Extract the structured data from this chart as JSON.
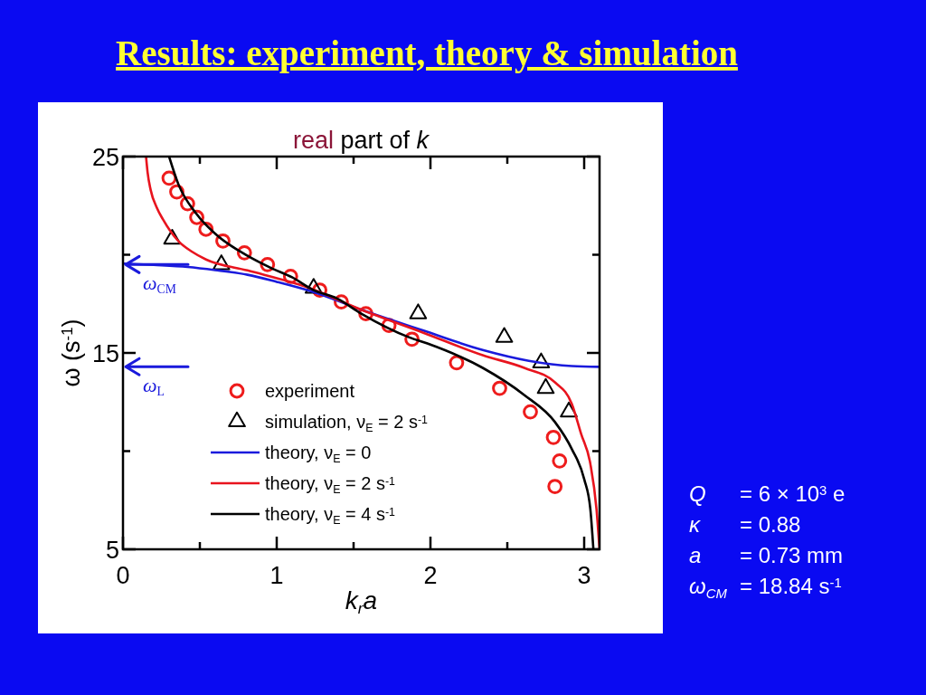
{
  "chart_data": {
    "type": "line",
    "title": "Results: experiment, theory & simulation",
    "subtitle": "real part of k",
    "xlabel": "k$_{r}$a",
    "ylabel": "ω (s$^{-1}$)",
    "xlim": [
      0,
      3.1
    ],
    "ylim": [
      5,
      25
    ],
    "xticks": [
      0,
      {
        "value": 0.5,
        "label": null
      },
      1,
      {
        "value": 1.5,
        "label": null
      },
      2,
      {
        "value": 2.5,
        "label": null
      },
      3
    ],
    "yticks": [
      5,
      {
        "value": 10,
        "label": null
      },
      15,
      {
        "value": 20,
        "label": null
      },
      25
    ],
    "grid": false,
    "legend": "bottom left",
    "series": [
      {
        "name": "experiment",
        "type": "scatter",
        "marker": "circle",
        "color": "#ee1c1c",
        "x": [
          0.3,
          0.35,
          0.42,
          0.48,
          0.54,
          0.65,
          0.79,
          0.94,
          1.09,
          1.28,
          1.42,
          1.58,
          1.73,
          1.88,
          2.17,
          2.45,
          2.65,
          2.8,
          2.84,
          2.81
        ],
        "values": [
          23.9,
          23.2,
          22.6,
          21.9,
          21.3,
          20.7,
          20.1,
          19.5,
          18.9,
          18.2,
          17.6,
          17.0,
          16.4,
          15.7,
          14.5,
          13.2,
          12.0,
          10.7,
          9.5,
          8.2
        ]
      },
      {
        "name": "simulation, ν$_{E}$ = 2 s$^{-1}$",
        "type": "scatter",
        "marker": "triangle",
        "color": "#000000",
        "x": [
          0.32,
          0.64,
          1.24,
          1.92,
          2.48,
          2.72,
          2.75,
          2.9
        ],
        "values": [
          20.8,
          19.5,
          18.3,
          17.0,
          15.8,
          14.5,
          13.2,
          12.0
        ]
      },
      {
        "name": "theory, ν$_{E}$ = 0",
        "color": "#1a1adc",
        "x": [
          0,
          0.2,
          0.42,
          0.6,
          0.81,
          1.0,
          1.24,
          1.55,
          1.95,
          2.34,
          2.64,
          2.92,
          3.1
        ],
        "values": [
          19.55,
          19.48,
          19.38,
          19.22,
          18.98,
          18.62,
          18.1,
          17.2,
          16.15,
          15.15,
          14.6,
          14.33,
          14.29
        ]
      },
      {
        "name": "theory, ν$_{E}$ = 2 s$^{-1}$",
        "color": "#e8141e",
        "x": [
          0.15,
          0.16,
          0.18,
          0.22,
          0.26,
          0.36,
          0.45,
          0.54,
          0.81,
          1.2,
          1.55,
          1.95,
          2.34,
          2.61,
          2.81,
          2.92,
          2.98,
          3.04,
          3.08,
          3.1
        ],
        "values": [
          25,
          24.2,
          23.3,
          22.4,
          21.8,
          20.7,
          20.15,
          19.76,
          19.2,
          18.34,
          17.2,
          16.04,
          14.88,
          14.24,
          13.5,
          12.4,
          10.88,
          9.36,
          7.06,
          5.0
        ]
      },
      {
        "name": "theory, ν$_{E}$ = 4 s$^{-1}$",
        "color": "#000000",
        "x": [
          0.3,
          0.36,
          0.48,
          0.61,
          0.81,
          0.96,
          1.1,
          1.24,
          1.39,
          1.55,
          1.86,
          1.98,
          2.34,
          2.61,
          2.81,
          2.92,
          3.0,
          3.04,
          3.06
        ],
        "values": [
          25,
          23.6,
          22.06,
          21.0,
          19.95,
          19.34,
          18.85,
          18.2,
          17.78,
          17.0,
          15.8,
          15.48,
          14.24,
          12.86,
          11.48,
          10.1,
          8.58,
          7.06,
          5.0
        ]
      }
    ],
    "ref_lines": [
      {
        "axis": "y",
        "value": 19.5,
        "color": "#1a1adc"
      },
      {
        "axis": "y",
        "value": 14.3,
        "color": "#1a1adc"
      }
    ],
    "annotations": [
      {
        "text": "ω$_{CM}$",
        "x": 0,
        "y": 19.5
      },
      {
        "text": "ω$_{L}$",
        "x": 0,
        "y": 14.3
      },
      "Q = 6 × 10$^{3}$ e",
      "κ = 0.88",
      "a = 0.73 mm",
      "ω$_{CM}$ = 18.84 s$^{-1}$"
    ]
  }
}
